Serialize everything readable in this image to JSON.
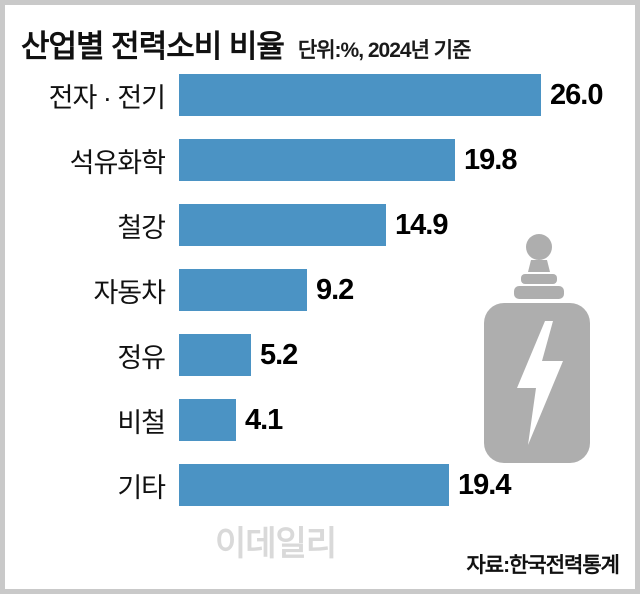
{
  "header": {
    "title": "산업별 전력소비 비율",
    "unit_note": "단위:%, 2024년 기준"
  },
  "chart_data": {
    "type": "bar",
    "orientation": "horizontal",
    "title": "산업별 전력소비 비율",
    "unit": "%",
    "year_basis": "2024년 기준",
    "categories": [
      "전자 · 전기",
      "석유화학",
      "철강",
      "자동차",
      "정유",
      "비철",
      "기타"
    ],
    "values": [
      26.0,
      19.8,
      14.9,
      9.2,
      5.2,
      4.1,
      19.4
    ],
    "value_labels": [
      "26.0",
      "19.8",
      "14.9",
      "9.2",
      "5.2",
      "4.1",
      "19.4"
    ],
    "xlim": [
      0,
      26
    ],
    "grid": false,
    "legend": "none",
    "bar_color": "#4b93c4"
  },
  "icons": {
    "transformer_icon": "power-transformer-with-lightning-bolt",
    "icon_color": "#aeaeae",
    "bolt_color": "#ffffff"
  },
  "footer": {
    "watermark": "이데일리",
    "source": "자료:한국전력통계"
  },
  "colors": {
    "bar": "#4b93c4",
    "border": "#c9c9c9",
    "text": "#111111",
    "watermark": "#aaaaaa"
  }
}
